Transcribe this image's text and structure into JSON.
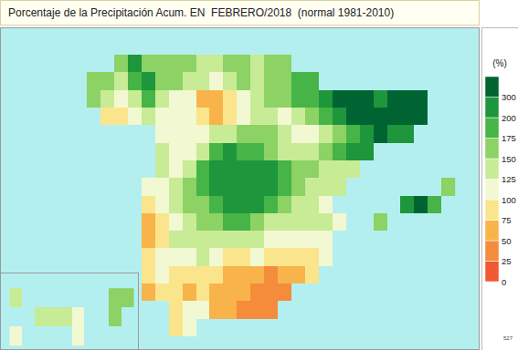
{
  "chart_data": {
    "type": "heatmap",
    "title": "Porcentaje de la Precipitación Acum. EN  FEBRERO/2018  (normal 1981-2010)",
    "tick_labels": false,
    "xlim": [
      -12.4,
      5.1
    ],
    "ylim": [
      35.4,
      44.5
    ],
    "x": [
      -9.5,
      -9.0,
      -8.5,
      -8.0,
      -7.5,
      -7.0,
      -6.5,
      -6.0,
      -5.5,
      -5.0,
      -4.5,
      -4.0,
      -3.5,
      -3.0,
      -2.5,
      -2.0,
      -1.5,
      -1.0,
      -0.5,
      0.0,
      0.5,
      1.0,
      1.5,
      2.0,
      2.5,
      3.0,
      3.5,
      4.0
    ],
    "y": [
      36.0,
      36.5,
      37.0,
      37.5,
      38.0,
      38.5,
      39.0,
      39.5,
      40.0,
      40.5,
      41.0,
      41.5,
      42.0,
      42.5,
      43.0,
      43.5
    ],
    "z": [
      [
        null,
        null,
        null,
        null,
        null,
        null,
        null,
        87,
        112,
        null,
        null,
        null,
        null,
        null,
        null,
        null,
        null,
        null,
        null,
        null,
        null,
        null,
        null,
        null,
        null,
        null,
        null,
        null
      ],
      [
        null,
        null,
        null,
        null,
        null,
        null,
        null,
        87,
        112,
        112,
        62,
        62,
        37,
        37,
        37,
        null,
        null,
        null,
        null,
        null,
        null,
        null,
        null,
        null,
        null,
        null,
        null,
        null
      ],
      [
        null,
        null,
        null,
        null,
        null,
        62,
        87,
        87,
        62,
        87,
        62,
        62,
        62,
        37,
        37,
        37,
        null,
        null,
        null,
        null,
        null,
        null,
        null,
        null,
        null,
        null,
        null,
        null
      ],
      [
        null,
        null,
        null,
        null,
        null,
        87,
        112,
        87,
        87,
        87,
        87,
        62,
        62,
        62,
        37,
        62,
        62,
        87,
        null,
        null,
        null,
        null,
        null,
        null,
        null,
        null,
        null,
        null
      ],
      [
        null,
        null,
        null,
        null,
        null,
        87,
        112,
        112,
        112,
        137,
        112,
        87,
        87,
        112,
        87,
        87,
        87,
        87,
        112,
        null,
        null,
        null,
        null,
        null,
        null,
        null,
        null,
        null
      ],
      [
        null,
        null,
        null,
        null,
        null,
        62,
        87,
        137,
        137,
        137,
        137,
        137,
        137,
        137,
        112,
        112,
        112,
        112,
        112,
        null,
        null,
        null,
        null,
        null,
        null,
        null,
        null,
        null
      ],
      [
        null,
        null,
        null,
        null,
        null,
        62,
        87,
        112,
        137,
        162,
        162,
        187,
        187,
        162,
        137,
        137,
        137,
        137,
        137,
        112,
        null,
        null,
        162,
        null,
        null,
        null,
        null,
        null
      ],
      [
        null,
        null,
        null,
        null,
        null,
        87,
        112,
        137,
        162,
        162,
        187,
        250,
        250,
        250,
        187,
        162,
        137,
        137,
        112,
        null,
        null,
        null,
        null,
        null,
        250,
        350,
        187,
        null
      ],
      [
        null,
        null,
        null,
        null,
        null,
        112,
        112,
        137,
        162,
        187,
        250,
        250,
        250,
        250,
        250,
        187,
        162,
        137,
        137,
        137,
        null,
        null,
        null,
        null,
        null,
        null,
        null,
        162
      ],
      [
        null,
        null,
        null,
        null,
        null,
        null,
        137,
        112,
        137,
        187,
        250,
        250,
        250,
        250,
        250,
        187,
        162,
        162,
        137,
        137,
        137,
        null,
        null,
        null,
        null,
        null,
        null,
        null
      ],
      [
        null,
        null,
        null,
        null,
        null,
        null,
        137,
        112,
        112,
        137,
        187,
        250,
        187,
        187,
        162,
        137,
        137,
        137,
        162,
        187,
        250,
        250,
        null,
        null,
        null,
        null,
        null,
        null
      ],
      [
        null,
        null,
        null,
        null,
        null,
        null,
        112,
        112,
        112,
        112,
        137,
        137,
        162,
        162,
        162,
        137,
        112,
        112,
        137,
        162,
        187,
        250,
        350,
        250,
        250,
        null,
        null,
        null
      ],
      [
        null,
        null,
        87,
        87,
        112,
        137,
        112,
        112,
        112,
        87,
        62,
        87,
        112,
        137,
        137,
        112,
        137,
        162,
        187,
        250,
        350,
        350,
        350,
        350,
        350,
        350,
        null,
        null
      ],
      [
        null,
        162,
        137,
        112,
        137,
        187,
        137,
        112,
        112,
        62,
        62,
        87,
        112,
        137,
        162,
        162,
        187,
        187,
        250,
        350,
        350,
        350,
        250,
        350,
        350,
        350,
        null,
        null
      ],
      [
        null,
        162,
        162,
        137,
        187,
        250,
        162,
        162,
        137,
        137,
        112,
        137,
        162,
        137,
        162,
        162,
        187,
        187,
        null,
        null,
        null,
        null,
        null,
        null,
        null,
        null,
        null,
        null
      ],
      [
        null,
        null,
        null,
        162,
        250,
        162,
        162,
        162,
        162,
        137,
        137,
        162,
        162,
        137,
        162,
        162,
        null,
        null,
        null,
        null,
        null,
        null,
        null,
        null,
        null,
        null,
        null,
        null
      ]
    ],
    "inset": {
      "xlim": [
        -18.6,
        -13.1
      ],
      "ylim": [
        27.4,
        29.4
      ],
      "x": [
        -18.0,
        -17.5,
        -17.0,
        -16.5,
        -16.0,
        -15.5,
        -15.0,
        -14.5,
        -14.0,
        -13.5
      ],
      "y": [
        27.75,
        28.25,
        28.75
      ],
      "z": [
        [
          112,
          null,
          null,
          null,
          null,
          112,
          null,
          null,
          null,
          null
        ],
        [
          null,
          null,
          137,
          137,
          137,
          112,
          null,
          null,
          162,
          null
        ],
        [
          137,
          null,
          null,
          null,
          null,
          null,
          null,
          null,
          162,
          162
        ]
      ]
    },
    "colorbar": {
      "title": "(%)",
      "range": [
        0,
        400
      ],
      "ticks": [
        0,
        25,
        50,
        75,
        100,
        125,
        150,
        175,
        200,
        300
      ],
      "colors": [
        "#f05a32",
        "#f48c3c",
        "#f8b44a",
        "#fbe58c",
        "#f2f8d2",
        "#c8eb96",
        "#8cd264",
        "#46b446",
        "#1e963c",
        "#006432"
      ]
    },
    "annotations": [
      "527"
    ]
  }
}
